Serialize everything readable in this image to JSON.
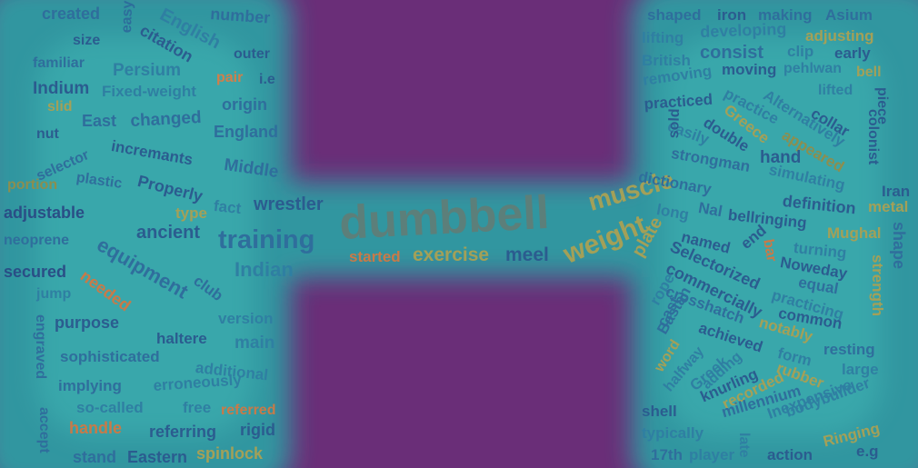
{
  "colors": {
    "background": "#6a2e78",
    "shape_fill": "#2e9ca3",
    "shape_glow": "#48c8c0"
  },
  "words": [
    {
      "text": "created",
      "color": "#2f6e9c",
      "size": 18
    },
    {
      "text": "easy",
      "color": "#2d6d9b",
      "size": 16
    },
    {
      "text": "English",
      "color": "#2f7fa2",
      "size": 20
    },
    {
      "text": "number",
      "color": "#2f6e9c",
      "size": 18
    },
    {
      "text": "size",
      "color": "#2b5c8f",
      "size": 16
    },
    {
      "text": "citation",
      "color": "#2b5c8f",
      "size": 18
    },
    {
      "text": "outer",
      "color": "#2b5c8f",
      "size": 16
    },
    {
      "text": "familiar",
      "color": "#2f6e9c",
      "size": 16
    },
    {
      "text": "Persium",
      "color": "#2f7fa2",
      "size": 19
    },
    {
      "text": "pair",
      "color": "#d07f4a",
      "size": 16
    },
    {
      "text": "i.e",
      "color": "#2b5c8f",
      "size": 16
    },
    {
      "text": "Indium",
      "color": "#2b5c8f",
      "size": 19
    },
    {
      "text": "Fixed-weight",
      "color": "#2f7fa2",
      "size": 17
    },
    {
      "text": "origin",
      "color": "#2f6e9c",
      "size": 18
    },
    {
      "text": "slid",
      "color": "#a3a058",
      "size": 16
    },
    {
      "text": "East",
      "color": "#2f6e9c",
      "size": 18
    },
    {
      "text": "changed",
      "color": "#2f6e9c",
      "size": 19
    },
    {
      "text": "England",
      "color": "#2f6e9c",
      "size": 18
    },
    {
      "text": "nut",
      "color": "#2b5c8f",
      "size": 16
    },
    {
      "text": "selector",
      "color": "#2f6e9c",
      "size": 16
    },
    {
      "text": "incremants",
      "color": "#2b5c8f",
      "size": 17
    },
    {
      "text": "Middle",
      "color": "#2f6e9c",
      "size": 19
    },
    {
      "text": "portion",
      "color": "#8c8e4f",
      "size": 16
    },
    {
      "text": "plastic",
      "color": "#2f6e9c",
      "size": 16
    },
    {
      "text": "Properly",
      "color": "#2b5c8f",
      "size": 18
    },
    {
      "text": "fact",
      "color": "#2f7fa2",
      "size": 17
    },
    {
      "text": "wrestler",
      "color": "#2b5c8f",
      "size": 20
    },
    {
      "text": "adjustable",
      "color": "#2a4e86",
      "size": 18
    },
    {
      "text": "type",
      "color": "#a3a058",
      "size": 17
    },
    {
      "text": "neoprene",
      "color": "#2f6e9c",
      "size": 16
    },
    {
      "text": "ancient",
      "color": "#2b5c8f",
      "size": 20
    },
    {
      "text": "training",
      "color": "#2f6e9c",
      "size": 29
    },
    {
      "text": "equipment",
      "color": "#2f6e9c",
      "size": 22
    },
    {
      "text": "Indian",
      "color": "#2f7fa2",
      "size": 22
    },
    {
      "text": "secured",
      "color": "#2a4e86",
      "size": 18
    },
    {
      "text": "needed",
      "color": "#c87a48",
      "size": 18
    },
    {
      "text": "club",
      "color": "#2f6e9c",
      "size": 17
    },
    {
      "text": "jump",
      "color": "#2f7fa2",
      "size": 16
    },
    {
      "text": "version",
      "color": "#2f7fa2",
      "size": 17
    },
    {
      "text": "purpose",
      "color": "#2b5c8f",
      "size": 18
    },
    {
      "text": "engraved",
      "color": "#2f6e9c",
      "size": 16
    },
    {
      "text": "haltere",
      "color": "#2b5c8f",
      "size": 17
    },
    {
      "text": "main",
      "color": "#2f7fa2",
      "size": 19
    },
    {
      "text": "sophisticated",
      "color": "#2f6e9c",
      "size": 17
    },
    {
      "text": "additional",
      "color": "#2f7fa2",
      "size": 17
    },
    {
      "text": "implying",
      "color": "#2f6e9c",
      "size": 17
    },
    {
      "text": "erroneously",
      "color": "#2f7fa2",
      "size": 17
    },
    {
      "text": "so-called",
      "color": "#2f7fa2",
      "size": 17
    },
    {
      "text": "free",
      "color": "#2f7fa2",
      "size": 17
    },
    {
      "text": "referred",
      "color": "#c87a48",
      "size": 16
    },
    {
      "text": "accept",
      "color": "#2f6e9c",
      "size": 16
    },
    {
      "text": "handle",
      "color": "#c87a48",
      "size": 18
    },
    {
      "text": "referring",
      "color": "#2b5c8f",
      "size": 18
    },
    {
      "text": "rigid",
      "color": "#2b5c8f",
      "size": 18
    },
    {
      "text": "stand",
      "color": "#2f6e9c",
      "size": 18
    },
    {
      "text": "Eastern",
      "color": "#2b5c8f",
      "size": 18
    },
    {
      "text": "spinlock",
      "color": "#a3a058",
      "size": 18
    },
    {
      "text": "dumbbell",
      "color": "#5c7f7a",
      "size": 52
    },
    {
      "text": "started",
      "color": "#c87a48",
      "size": 17
    },
    {
      "text": "exercise",
      "color": "#a3a058",
      "size": 21
    },
    {
      "text": "meel",
      "color": "#2b5c8f",
      "size": 21
    },
    {
      "text": "muscle",
      "color": "#a3a058",
      "size": 28
    },
    {
      "text": "weight",
      "color": "#a3a058",
      "size": 30
    },
    {
      "text": "shaped",
      "color": "#2f6e9c",
      "size": 17
    },
    {
      "text": "iron",
      "color": "#2b5c8f",
      "size": 17
    },
    {
      "text": "making",
      "color": "#2f6e9c",
      "size": 17
    },
    {
      "text": "Asium",
      "color": "#2f6e9c",
      "size": 17
    },
    {
      "text": "lifting",
      "color": "#2f7fa2",
      "size": 17
    },
    {
      "text": "developing",
      "color": "#2f7fa2",
      "size": 18
    },
    {
      "text": "adjusting",
      "color": "#a3a058",
      "size": 17
    },
    {
      "text": "British",
      "color": "#2f7fa2",
      "size": 17
    },
    {
      "text": "consist",
      "color": "#2f6e9c",
      "size": 20
    },
    {
      "text": "clip",
      "color": "#2f7fa2",
      "size": 17
    },
    {
      "text": "early",
      "color": "#2b5c8f",
      "size": 17
    },
    {
      "text": "removing",
      "color": "#2f7fa2",
      "size": 17
    },
    {
      "text": "moving",
      "color": "#2b5c8f",
      "size": 17
    },
    {
      "text": "pehlwan",
      "color": "#2f7fa2",
      "size": 16
    },
    {
      "text": "bell",
      "color": "#a3a058",
      "size": 16
    },
    {
      "text": "practiced",
      "color": "#2b5c8f",
      "size": 17
    },
    {
      "text": "practice",
      "color": "#2f7fa2",
      "size": 17
    },
    {
      "text": "Alternatively",
      "color": "#2f7fa2",
      "size": 17
    },
    {
      "text": "lifted",
      "color": "#2f7fa2",
      "size": 16
    },
    {
      "text": "piece",
      "color": "#2b5c8f",
      "size": 16
    },
    {
      "text": "easily",
      "color": "#2f7fa2",
      "size": 17
    },
    {
      "text": "Greece",
      "color": "#a3a058",
      "size": 17
    },
    {
      "text": "collar",
      "color": "#2b5c8f",
      "size": 17
    },
    {
      "text": "colonist",
      "color": "#2b5c8f",
      "size": 16
    },
    {
      "text": "sold",
      "color": "#2b5c8f",
      "size": 16
    },
    {
      "text": "double",
      "color": "#2b5c8f",
      "size": 17
    },
    {
      "text": "appeared",
      "color": "#8c8e4f",
      "size": 17
    },
    {
      "text": "strongman",
      "color": "#2f6e9c",
      "size": 17
    },
    {
      "text": "hand",
      "color": "#2b5c8f",
      "size": 19
    },
    {
      "text": "dictionary",
      "color": "#2f6e9c",
      "size": 17
    },
    {
      "text": "simulating",
      "color": "#2f7fa2",
      "size": 17
    },
    {
      "text": "Iran",
      "color": "#2b5c8f",
      "size": 17
    },
    {
      "text": "definition",
      "color": "#2b5c8f",
      "size": 18
    },
    {
      "text": "metal",
      "color": "#a3a058",
      "size": 17
    },
    {
      "text": "long",
      "color": "#2f7fa2",
      "size": 17
    },
    {
      "text": "Nal",
      "color": "#2f6e9c",
      "size": 17
    },
    {
      "text": "bellringing",
      "color": "#2b5c8f",
      "size": 17
    },
    {
      "text": "Mughal",
      "color": "#a3a058",
      "size": 17
    },
    {
      "text": "shape",
      "color": "#2f6e9c",
      "size": 18
    },
    {
      "text": "named",
      "color": "#2b5c8f",
      "size": 17
    },
    {
      "text": "end",
      "color": "#2b5c8f",
      "size": 17
    },
    {
      "text": "bar",
      "color": "#c87a48",
      "size": 16
    },
    {
      "text": "turning",
      "color": "#2f7fa2",
      "size": 17
    },
    {
      "text": "plate",
      "color": "#a3a058",
      "size": 20
    },
    {
      "text": "Selectorized",
      "color": "#2b5c8f",
      "size": 18
    },
    {
      "text": "Noweday",
      "color": "#2b5c8f",
      "size": 17
    },
    {
      "text": "strength",
      "color": "#a3a058",
      "size": 17
    },
    {
      "text": "commercially",
      "color": "#2b5c8f",
      "size": 18
    },
    {
      "text": "equal",
      "color": "#2f6e9c",
      "size": 17
    },
    {
      "text": "rope",
      "color": "#2f7fa2",
      "size": 17
    },
    {
      "text": "crosshatch",
      "color": "#2f6e9c",
      "size": 17
    },
    {
      "text": "practicing",
      "color": "#2f7fa2",
      "size": 17
    },
    {
      "text": "cast",
      "color": "#2f6e9c",
      "size": 17
    },
    {
      "text": "common",
      "color": "#2b5c8f",
      "size": 17
    },
    {
      "text": "notably",
      "color": "#a3a058",
      "size": 17
    },
    {
      "text": "Bastan",
      "color": "#2f6e9c",
      "size": 17
    },
    {
      "text": "achieved",
      "color": "#2b5c8f",
      "size": 17
    },
    {
      "text": "resting",
      "color": "#2f6e9c",
      "size": 17
    },
    {
      "text": "word",
      "color": "#a3a058",
      "size": 16
    },
    {
      "text": "halfway",
      "color": "#2f7fa2",
      "size": 16
    },
    {
      "text": "form",
      "color": "#2f7fa2",
      "size": 17
    },
    {
      "text": "Greek",
      "color": "#2f7fa2",
      "size": 17
    },
    {
      "text": "adding",
      "color": "#2f7fa2",
      "size": 16
    },
    {
      "text": "rubber",
      "color": "#a3a058",
      "size": 17
    },
    {
      "text": "large",
      "color": "#2f7fa2",
      "size": 17
    },
    {
      "text": "knurling",
      "color": "#2b5c8f",
      "size": 17
    },
    {
      "text": "recorded",
      "color": "#a3a058",
      "size": 17
    },
    {
      "text": "millennium",
      "color": "#2f6e9c",
      "size": 17
    },
    {
      "text": "Inexpensive",
      "color": "#2f7fa2",
      "size": 17
    },
    {
      "text": "shell",
      "color": "#2b5c8f",
      "size": 17
    },
    {
      "text": "bodybuilder",
      "color": "#2f7fa2",
      "size": 17
    },
    {
      "text": "typically",
      "color": "#2f7fa2",
      "size": 17
    },
    {
      "text": "Ringing",
      "color": "#a3a058",
      "size": 17
    },
    {
      "text": "17th",
      "color": "#2f6e9c",
      "size": 17
    },
    {
      "text": "player",
      "color": "#2f7fa2",
      "size": 17
    },
    {
      "text": "late",
      "color": "#2f7fa2",
      "size": 16
    },
    {
      "text": "action",
      "color": "#2b5c8f",
      "size": 17
    },
    {
      "text": "e.g",
      "color": "#2b5c8f",
      "size": 17
    }
  ]
}
